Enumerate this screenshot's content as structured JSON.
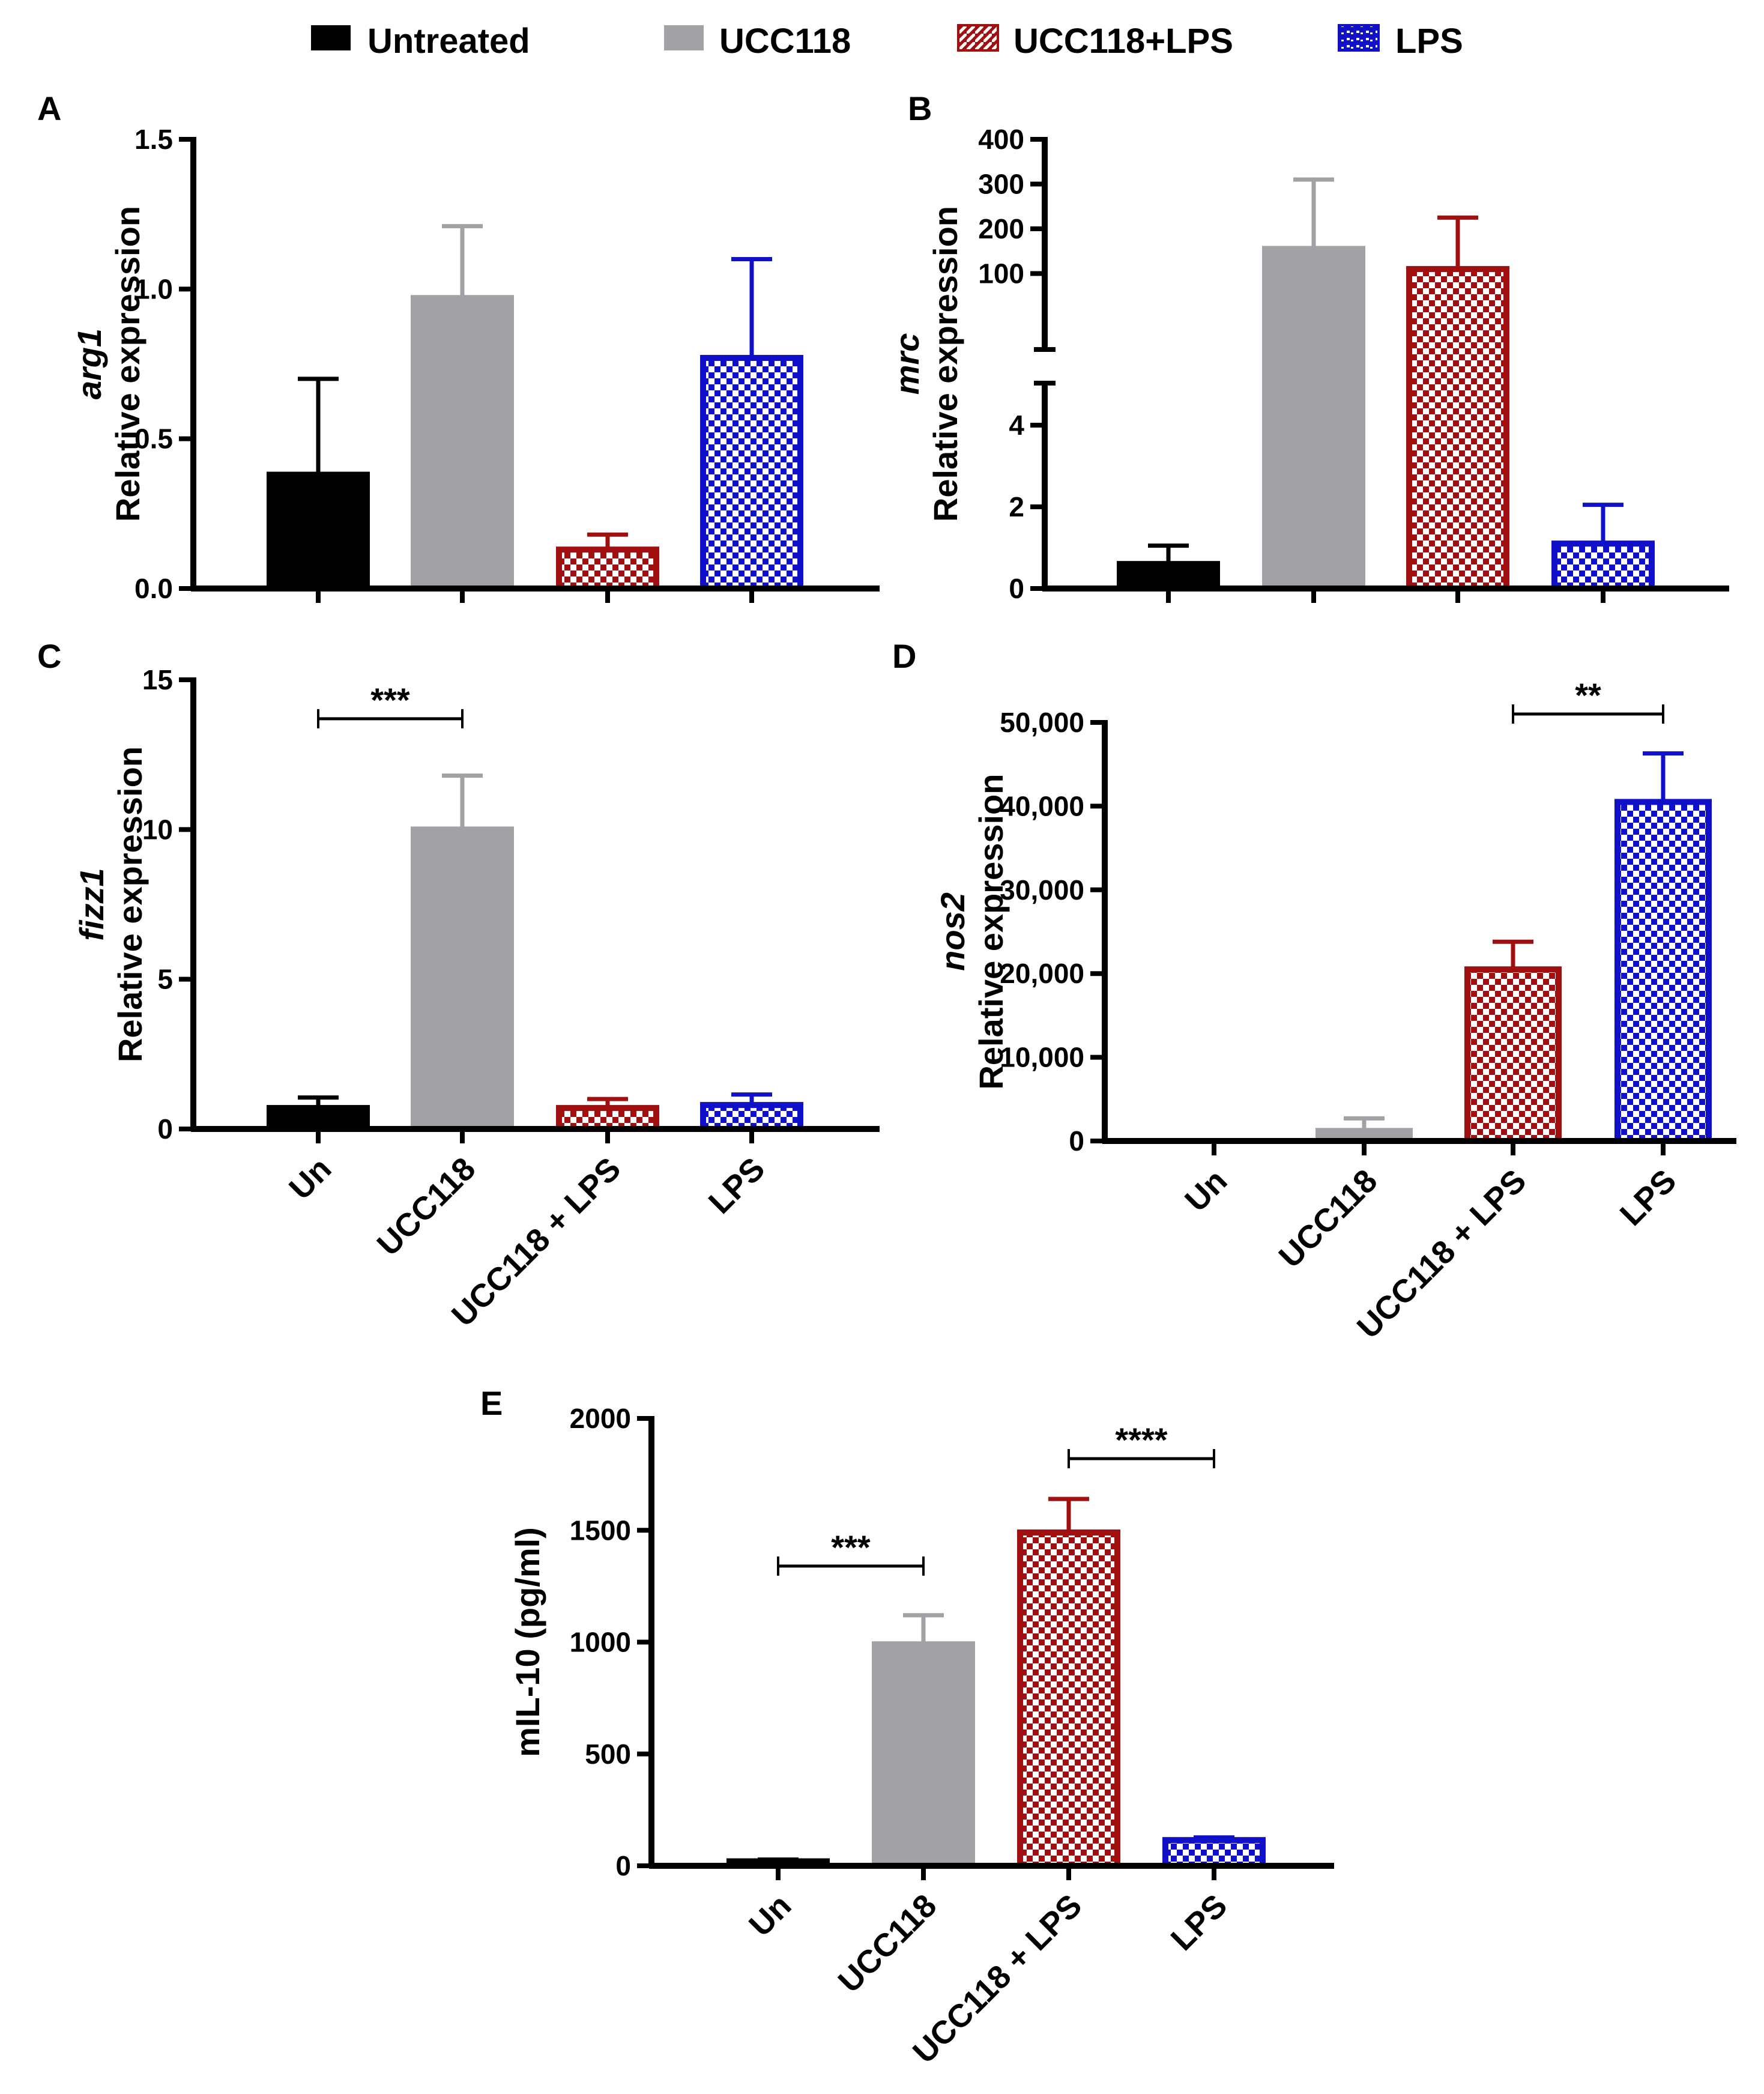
{
  "legend": {
    "placement": "top",
    "items": [
      {
        "label": "Untreated",
        "color": "#000000",
        "pattern": "solid-black"
      },
      {
        "label": "UCC118",
        "color": "#a2a2a6",
        "pattern": "solid-grey"
      },
      {
        "label": "UCC118+LPS",
        "color": "#a01010",
        "pattern": "check-red"
      },
      {
        "label": "LPS",
        "color": "#1010c8",
        "pattern": "check-blue"
      }
    ]
  },
  "colors": {
    "axis": "#000000",
    "untreated": "#000000",
    "ucc118": "#a2a2a6",
    "ucc118_lps": "#a01010",
    "lps": "#1010c8"
  },
  "chart_data": [
    {
      "panel": "A",
      "type": "bar",
      "ylabel_gene": "arg1",
      "ylabel": "Relative expression",
      "categories": [
        "Untreated",
        "UCC118",
        "UCC118+LPS",
        "LPS"
      ],
      "category_labels": [],
      "values": [
        0.38,
        0.97,
        0.13,
        0.77
      ],
      "errors": [
        0.32,
        0.24,
        0.05,
        0.33
      ],
      "ylim": [
        0,
        1.5
      ],
      "yticks": [
        "0.0",
        "0.5",
        "1.0",
        "1.5"
      ],
      "significance": []
    },
    {
      "panel": "B",
      "type": "bar",
      "ylabel_gene": "mrc",
      "ylabel": "Relative expression",
      "broken_axis": true,
      "categories": [
        "Untreated",
        "UCC118",
        "UCC118+LPS",
        "LPS"
      ],
      "category_labels": [],
      "values": [
        0.6,
        155,
        110,
        1.1
      ],
      "errors": [
        0.45,
        155,
        115,
        0.95
      ],
      "ylim_lower": [
        0,
        5
      ],
      "ylim_upper": [
        0,
        400
      ],
      "yticks_lower": [
        "0",
        "2",
        "4"
      ],
      "yticks_upper": [
        "100",
        "200",
        "300",
        "400"
      ],
      "significance": []
    },
    {
      "panel": "C",
      "type": "bar",
      "ylabel_gene": "fizz1",
      "ylabel": "Relative expression",
      "categories": [
        "Untreated",
        "UCC118",
        "UCC118+LPS",
        "LPS"
      ],
      "category_labels": [
        "Un",
        "UCC118",
        "UCC118 + LPS",
        "LPS"
      ],
      "values": [
        0.7,
        10.0,
        0.7,
        0.8
      ],
      "errors": [
        0.35,
        1.8,
        0.3,
        0.35
      ],
      "ylim": [
        0,
        15
      ],
      "yticks": [
        "0",
        "5",
        "10",
        "15"
      ],
      "significance": [
        {
          "from": 0,
          "to": 1,
          "label": "***",
          "y": 13.7
        }
      ]
    },
    {
      "panel": "D",
      "type": "bar",
      "ylabel_gene": "nos2",
      "ylabel": "Relative expression",
      "categories": [
        "Untreated",
        "UCC118",
        "UCC118+LPS",
        "LPS"
      ],
      "category_labels": [
        "Un",
        "UCC118",
        "UCC118 + LPS",
        "LPS"
      ],
      "values": [
        0,
        1200,
        20500,
        40500
      ],
      "errors": [
        0,
        1500,
        3300,
        5800
      ],
      "ylim": [
        0,
        50000
      ],
      "yticks": [
        "0",
        "10,000",
        "20,000",
        "30,000",
        "40,000",
        "50,000"
      ],
      "significance": [
        {
          "from": 2,
          "to": 3,
          "label": "**",
          "y": 51000
        }
      ]
    },
    {
      "panel": "E",
      "type": "bar",
      "ylabel_gene": "",
      "ylabel": "mIL-10 (pg/ml)",
      "categories": [
        "Untreated",
        "UCC118",
        "UCC118+LPS",
        "LPS"
      ],
      "category_labels": [
        "Un",
        "UCC118",
        "UCC118 + LPS",
        "LPS"
      ],
      "values": [
        20,
        990,
        1490,
        115
      ],
      "errors": [
        8,
        130,
        150,
        12
      ],
      "ylim": [
        0,
        2000
      ],
      "yticks": [
        "0",
        "500",
        "1000",
        "1500",
        "2000"
      ],
      "significance": [
        {
          "from": 0,
          "to": 1,
          "label": "***",
          "y": 1340
        },
        {
          "from": 2,
          "to": 3,
          "label": "****",
          "y": 1820
        }
      ]
    }
  ]
}
